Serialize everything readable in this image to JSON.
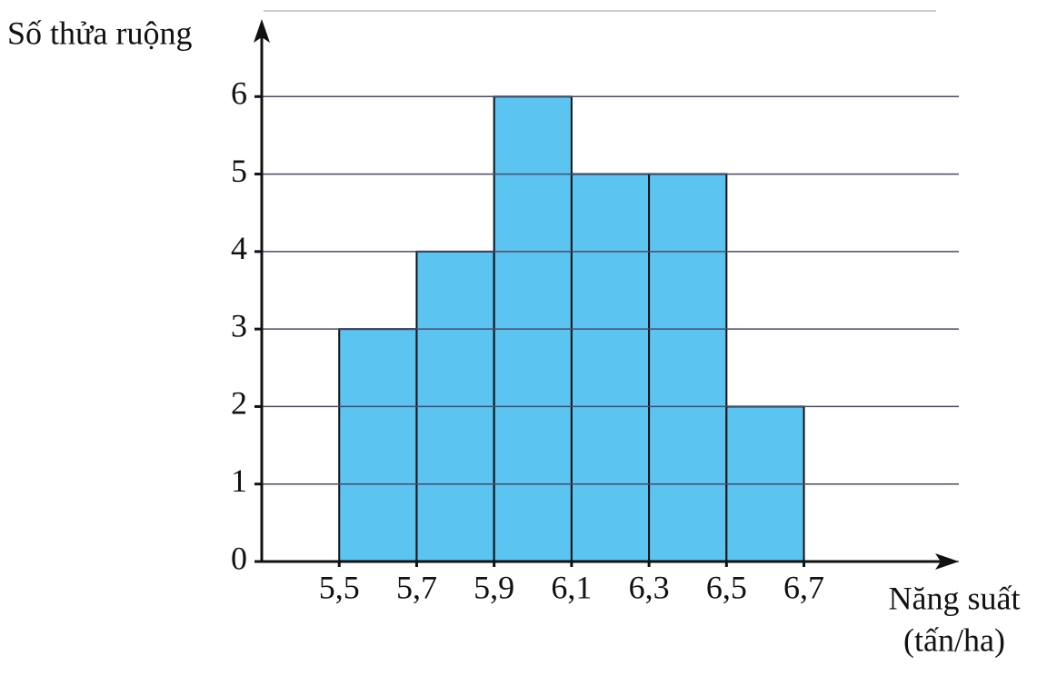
{
  "chart_data": {
    "type": "histogram",
    "ylabel": "Số thửa ruộng",
    "xlabel": [
      "Năng suất",
      "(tấn/ha)"
    ],
    "bins": [
      5.5,
      5.7,
      5.9,
      6.1,
      6.3,
      6.5,
      6.7
    ],
    "values": [
      3,
      4,
      6,
      5,
      5,
      2
    ],
    "color": "#5bc4f1",
    "xlim": [
      5.3,
      7.1
    ],
    "xticks": [
      {
        "value": 5.5,
        "label": "5,5"
      },
      {
        "value": 5.7,
        "label": "5,7"
      },
      {
        "value": 5.9,
        "label": "5,9"
      },
      {
        "value": 6.1,
        "label": "6,1"
      },
      {
        "value": 6.3,
        "label": "6,3"
      },
      {
        "value": 6.5,
        "label": "6,5"
      },
      {
        "value": 6.7,
        "label": "6,7"
      }
    ],
    "ylim": [
      0,
      7
    ],
    "yticks": [
      0,
      1,
      2,
      3,
      4,
      5,
      6
    ],
    "grid": true
  }
}
